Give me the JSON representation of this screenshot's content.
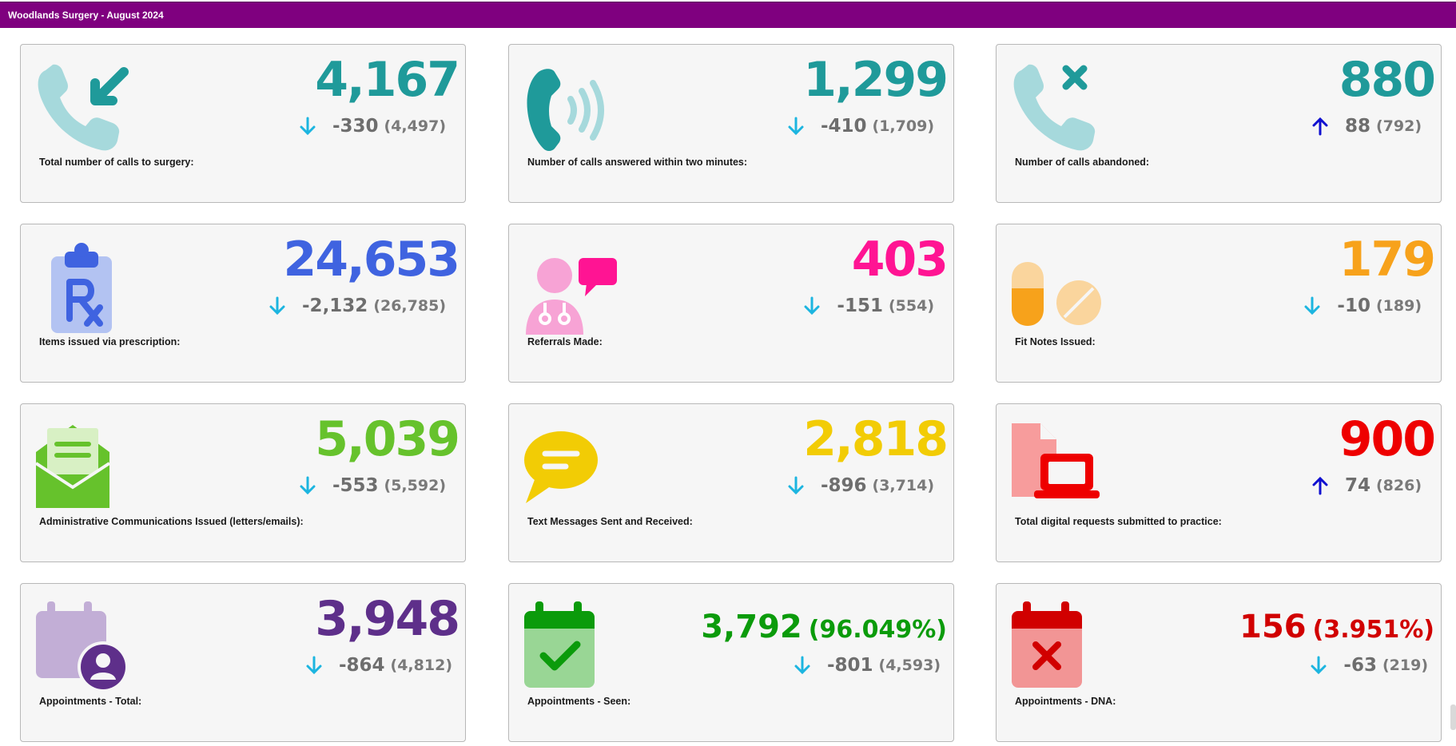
{
  "title": "Woodlands Surgery - August 2024",
  "cards": [
    {
      "icon": "phone-incoming-icon",
      "value": "4,167",
      "value_color": "#1f9a9a",
      "change": "-330",
      "prev": "(4,497)",
      "direction": "down",
      "label": "Total number of calls to surgery:"
    },
    {
      "icon": "phone-ringing-icon",
      "value": "1,299",
      "value_color": "#1f9a9a",
      "change": "-410",
      "prev": "(1,709)",
      "direction": "down",
      "label": "Number of calls answered within two minutes:"
    },
    {
      "icon": "phone-missed-icon",
      "value": "880",
      "value_color": "#1f9a9a",
      "change": "88",
      "prev": "(792)",
      "direction": "up",
      "label": "Number of calls abandoned:"
    },
    {
      "icon": "prescription-clipboard-icon",
      "value": "24,653",
      "value_color": "#3f63e0",
      "change": "-2,132",
      "prev": "(26,785)",
      "direction": "down",
      "label": "Items issued via prescription:"
    },
    {
      "icon": "doctor-chat-icon",
      "value": "403",
      "value_color": "#ff1493",
      "change": "-151",
      "prev": "(554)",
      "direction": "down",
      "label": "Referrals Made:"
    },
    {
      "icon": "pills-icon",
      "value": "179",
      "value_color": "#f7a21b",
      "change": "-10",
      "prev": "(189)",
      "direction": "down",
      "label": "Fit Notes Issued:"
    },
    {
      "icon": "open-envelope-icon",
      "value": "5,039",
      "value_color": "#66c22c",
      "change": "-553",
      "prev": "(5,592)",
      "direction": "down",
      "label": "Administrative Communications Issued (letters/emails):"
    },
    {
      "icon": "speech-bubble-icon",
      "value": "2,818",
      "value_color": "#f2cc05",
      "change": "-896",
      "prev": "(3,714)",
      "direction": "down",
      "label": "Text Messages Sent and Received:"
    },
    {
      "icon": "laptop-document-icon",
      "value": "900",
      "value_color": "#ee0000",
      "change": "74",
      "prev": "(826)",
      "direction": "up",
      "label": "Total digital requests submitted to practice:"
    },
    {
      "icon": "calendar-user-icon",
      "value": "3,948",
      "value_color": "#5e2f8a",
      "change": "-864",
      "prev": "(4,812)",
      "direction": "down",
      "label": "Appointments - Total:"
    },
    {
      "icon": "calendar-check-icon",
      "value": "3,792",
      "value_pct": "(96.049%)",
      "value_color": "#0b9b0b",
      "change": "-801",
      "prev": "(4,593)",
      "direction": "down",
      "label": "Appointments - Seen:"
    },
    {
      "icon": "calendar-cross-icon",
      "value": "156",
      "value_pct": "(3.951%)",
      "value_color": "#d10000",
      "change": "-63",
      "prev": "(219)",
      "direction": "down",
      "label": "Appointments - DNA:"
    }
  ],
  "arrow_colors": {
    "down": "#1cb5e0",
    "up": "#1010d0"
  }
}
